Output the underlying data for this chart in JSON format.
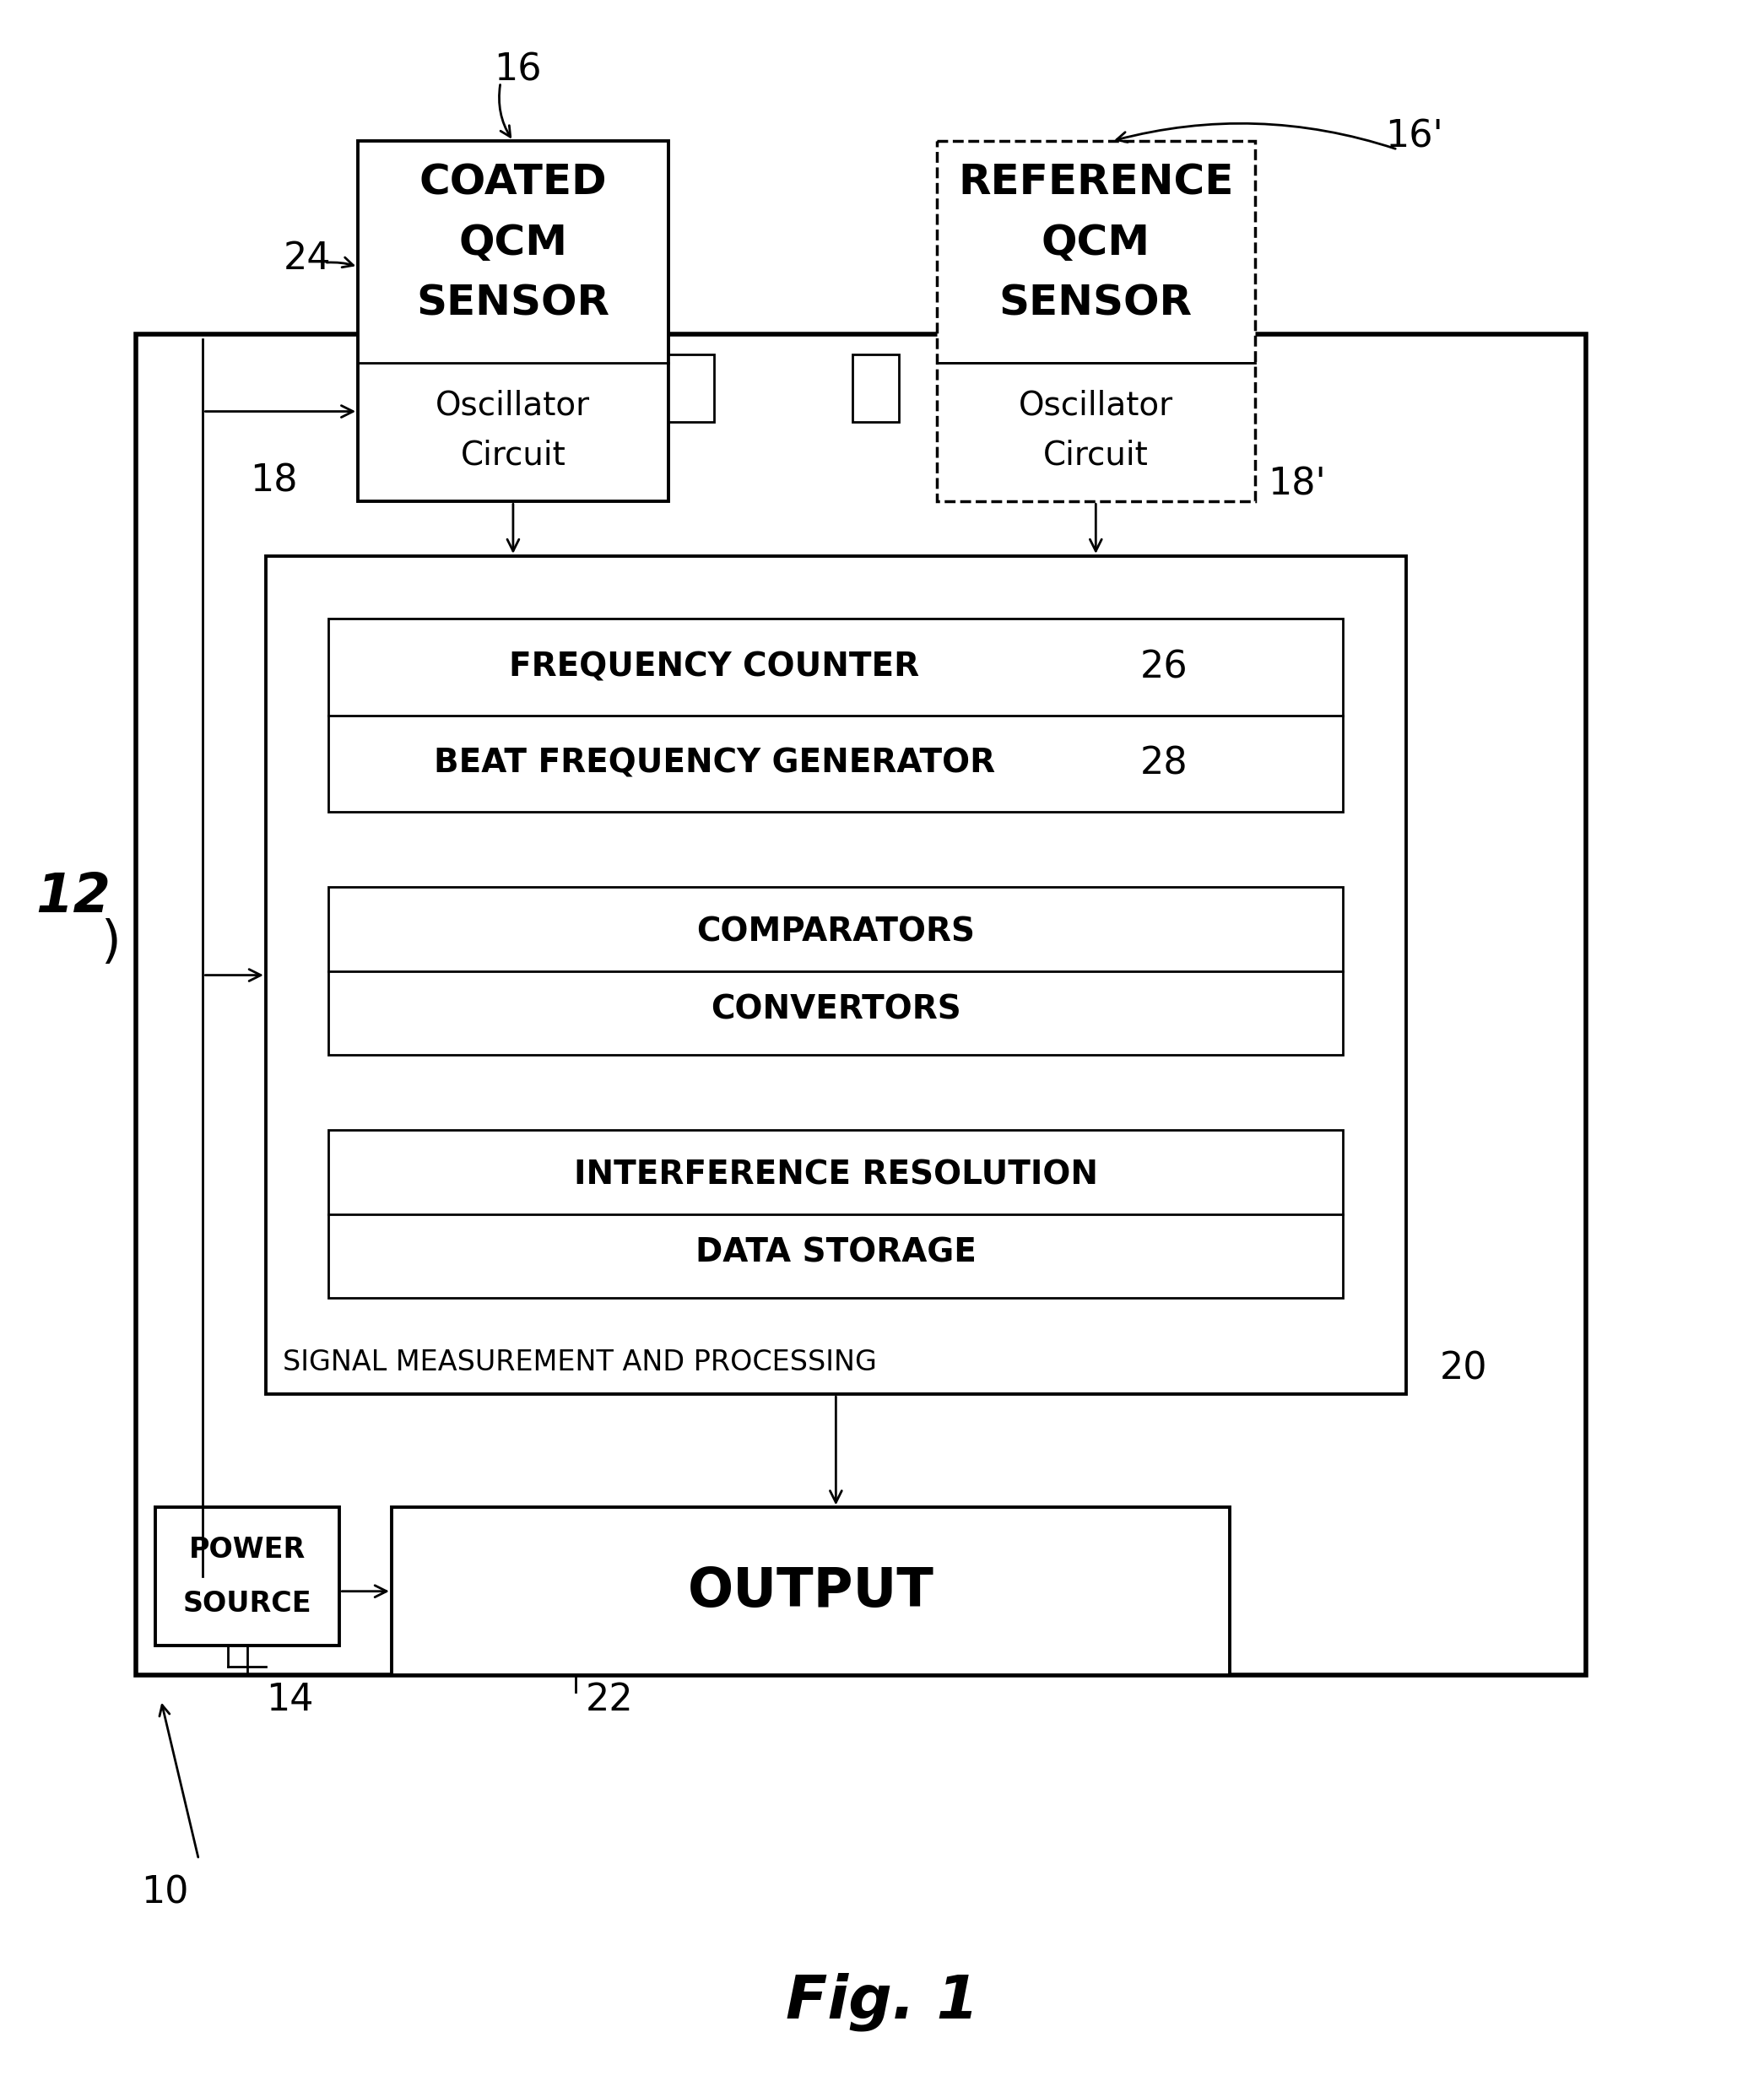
{
  "fig_label": "Fig. 1",
  "label_10": "10",
  "label_12": "12",
  "label_14": "14",
  "label_16": "16",
  "label_16p": "16'",
  "label_18": "18",
  "label_18p": "18'",
  "label_20": "20",
  "label_22": "22",
  "label_24": "24",
  "label_26": "26",
  "label_28": "28",
  "coated_sensor_top": [
    "COATED",
    "QCM",
    "SENSOR"
  ],
  "coated_sensor_bot": [
    "Oscillator",
    "Circuit"
  ],
  "reference_sensor_top": [
    "REFERENCE",
    "QCM",
    "SENSOR"
  ],
  "reference_sensor_bot": [
    "Oscillator",
    "Circuit"
  ],
  "freq_counter": "FREQUENCY COUNTER",
  "beat_freq": "BEAT FREQUENCY GENERATOR",
  "comparators": "COMPARATORS",
  "convertors": "CONVERTORS",
  "interference": "INTERFERENCE RESOLUTION",
  "data_storage": "DATA STORAGE",
  "signal_proc": "SIGNAL MEASUREMENT AND PROCESSING",
  "output": "OUTPUT",
  "power_source": [
    "POWER",
    "SOURCE"
  ],
  "bg_color": "#ffffff",
  "box_color": "#000000",
  "text_color": "#000000"
}
